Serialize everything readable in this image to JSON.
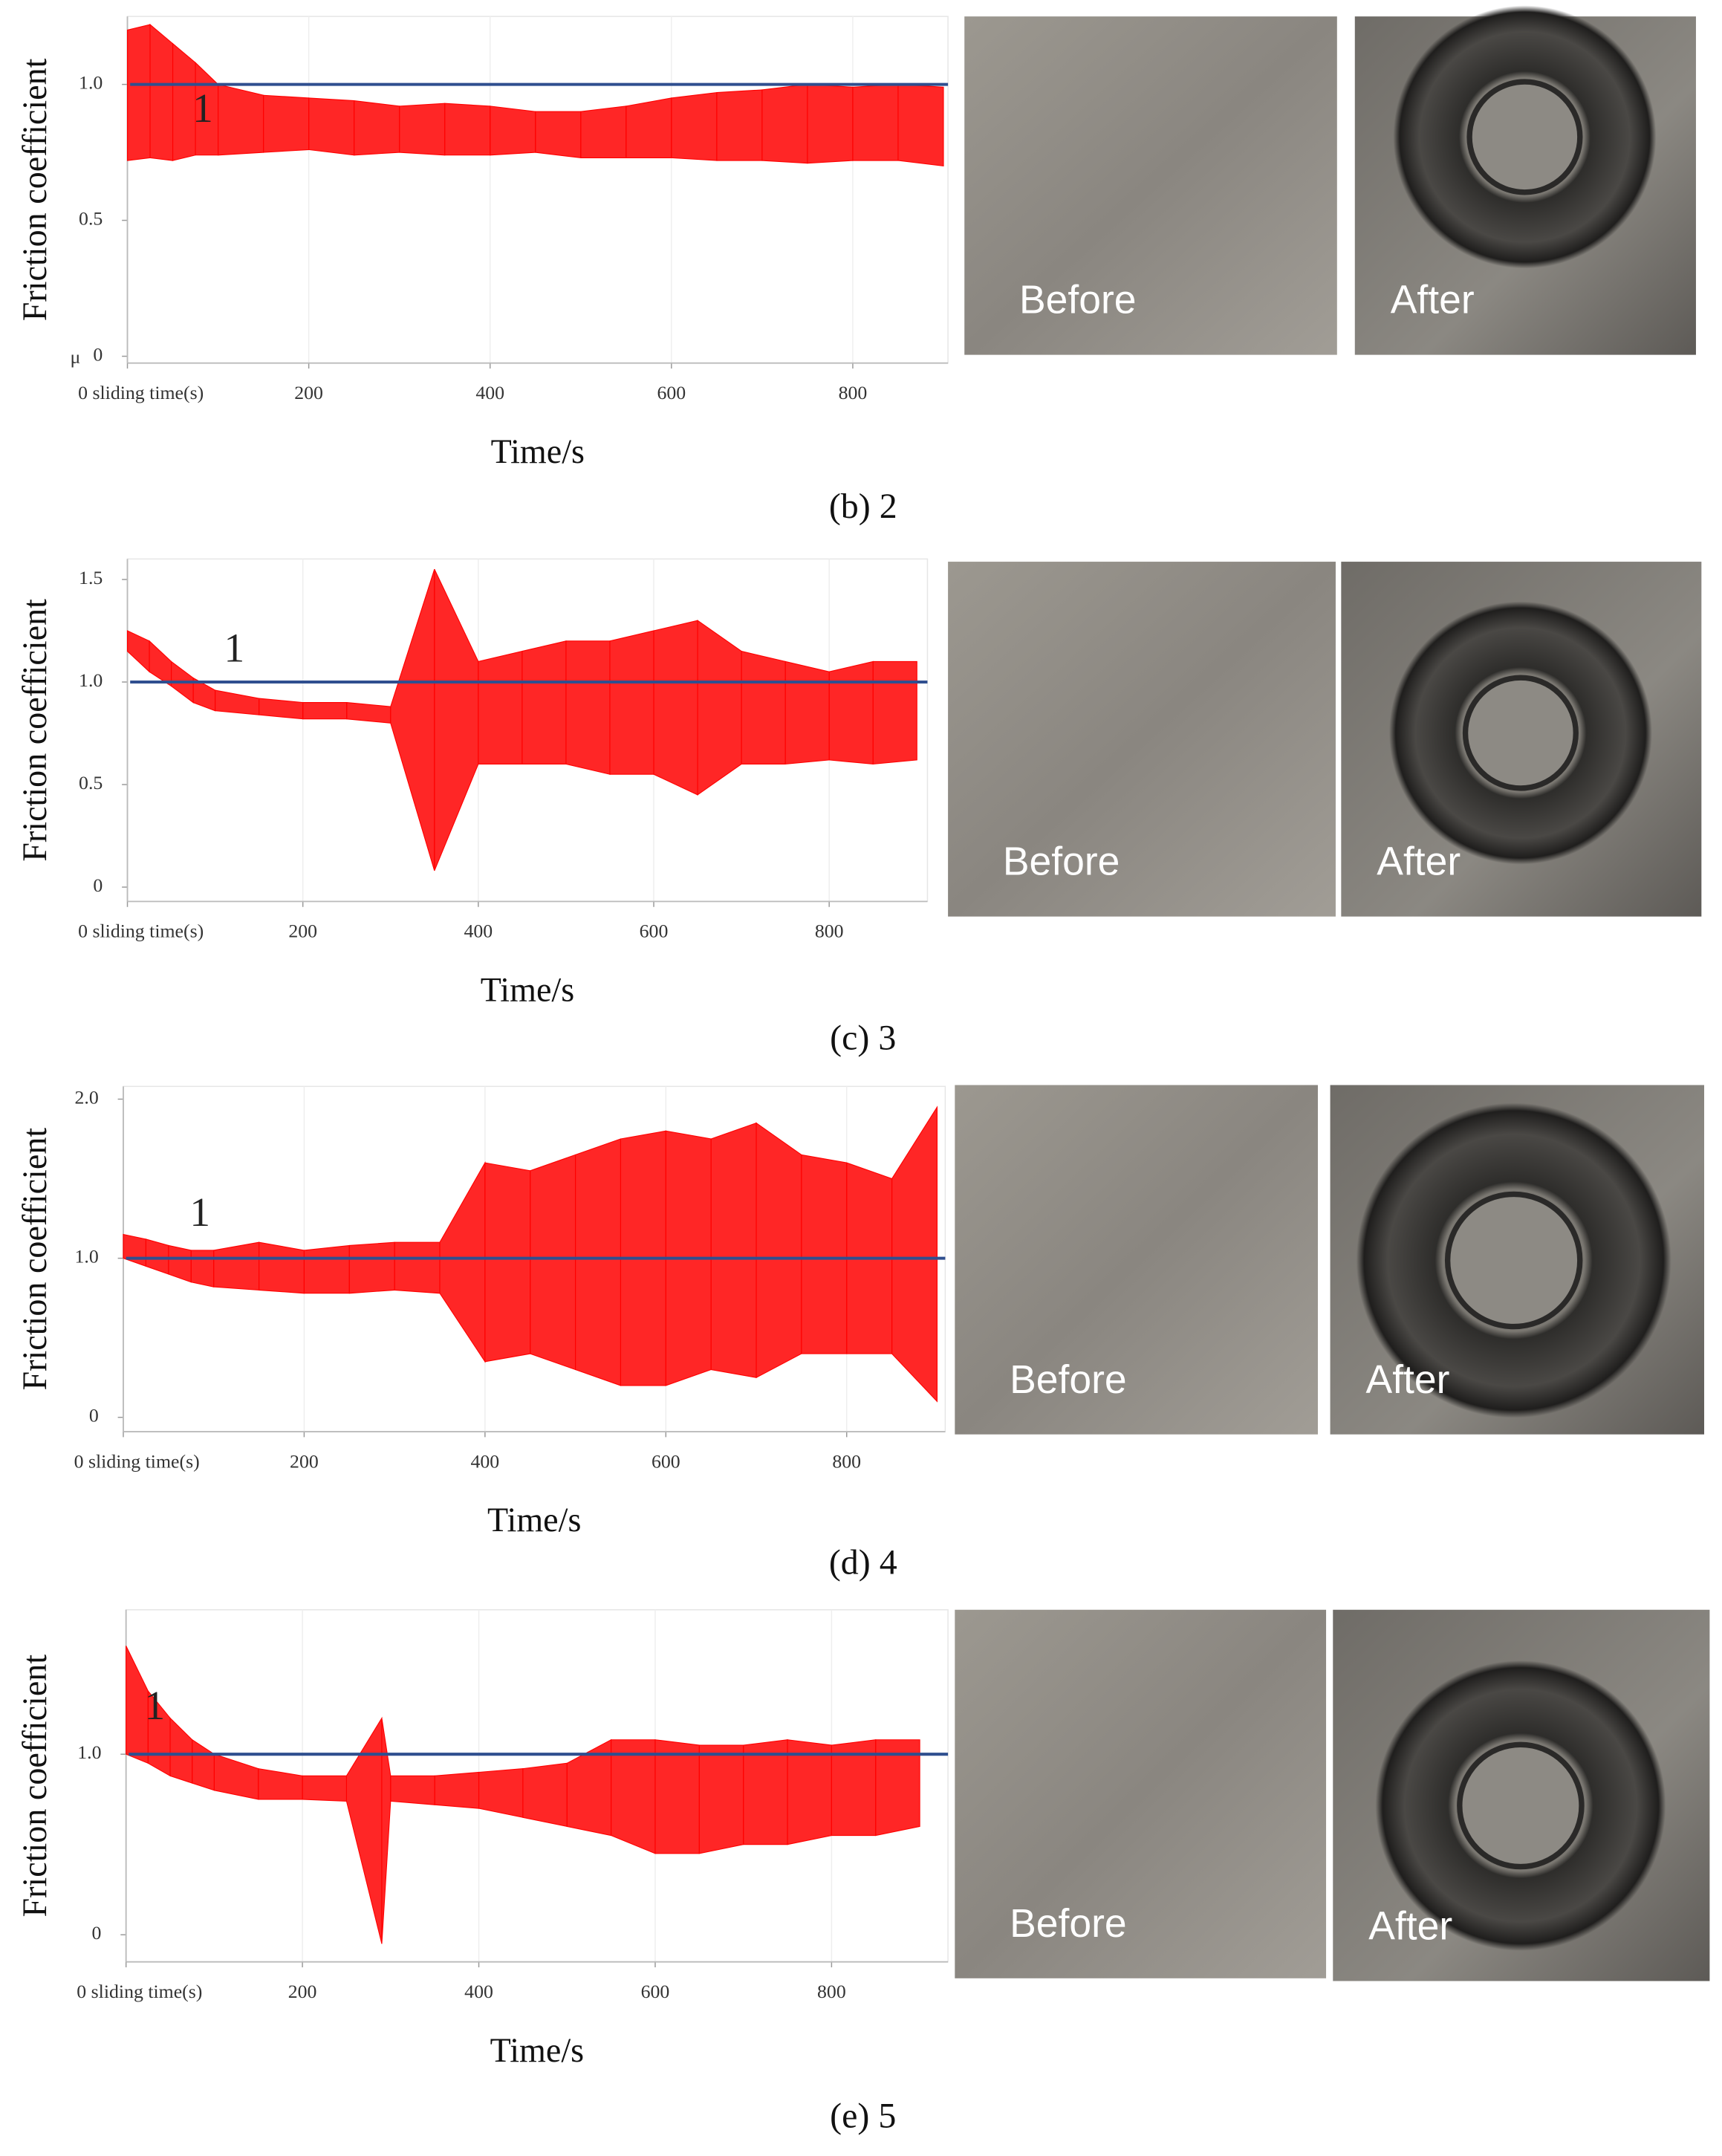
{
  "chart_data": [
    {
      "type": "band",
      "y_title": "Friction coefficient",
      "x_title": "Time/s",
      "caption": "(b) 2",
      "y_unit": "μ",
      "annotation": "1",
      "photo_labels": [
        "Before",
        "After"
      ],
      "reference": 1.0,
      "reference_color": "#2f4f8f",
      "color": "#ff0000",
      "grid": true,
      "xlim": [
        0,
        905
      ],
      "ylim": [
        -0.025,
        1.25
      ],
      "xticks": [
        {
          "value": 0,
          "label": "0 sliding time(s)"
        },
        200,
        400,
        600,
        800
      ],
      "yticks": [
        0,
        0.5,
        {
          "value": 1.0,
          "label": "1.0"
        }
      ],
      "x": [
        0,
        25,
        50,
        75,
        100,
        150,
        200,
        250,
        300,
        350,
        400,
        450,
        500,
        550,
        600,
        650,
        700,
        750,
        800,
        850,
        900
      ],
      "upper": [
        1.2,
        1.22,
        1.15,
        1.08,
        1.0,
        0.96,
        0.95,
        0.94,
        0.92,
        0.93,
        0.92,
        0.9,
        0.9,
        0.92,
        0.95,
        0.97,
        0.98,
        1.0,
        0.99,
        1.0,
        0.99
      ],
      "lower": [
        0.72,
        0.73,
        0.72,
        0.74,
        0.74,
        0.75,
        0.76,
        0.74,
        0.75,
        0.74,
        0.74,
        0.75,
        0.73,
        0.73,
        0.73,
        0.72,
        0.72,
        0.71,
        0.72,
        0.72,
        0.7
      ]
    },
    {
      "type": "band",
      "y_title": "Friction coefficient",
      "x_title": "Time/s",
      "caption": "(c) 3",
      "annotation": "1",
      "photo_labels": [
        "Before",
        "After"
      ],
      "reference": 1.0,
      "reference_color": "#2f4f8f",
      "color": "#ff0000",
      "grid": true,
      "xlim": [
        0,
        912
      ],
      "ylim": [
        -0.07,
        1.6
      ],
      "xticks": [
        {
          "value": 0,
          "label": "0 sliding time(s)"
        },
        200,
        400,
        600,
        800
      ],
      "yticks": [
        0,
        0.5,
        {
          "value": 1.0,
          "label": "1.0"
        },
        1.5
      ],
      "x": [
        0,
        25,
        50,
        75,
        100,
        150,
        200,
        250,
        300,
        350,
        400,
        450,
        500,
        550,
        600,
        650,
        700,
        750,
        800,
        850,
        900
      ],
      "upper": [
        1.25,
        1.2,
        1.1,
        1.02,
        0.96,
        0.92,
        0.9,
        0.9,
        0.88,
        1.55,
        1.1,
        1.15,
        1.2,
        1.2,
        1.25,
        1.3,
        1.15,
        1.1,
        1.05,
        1.1,
        1.1
      ],
      "lower": [
        1.15,
        1.05,
        0.98,
        0.9,
        0.86,
        0.84,
        0.82,
        0.82,
        0.8,
        0.08,
        0.6,
        0.6,
        0.6,
        0.55,
        0.55,
        0.45,
        0.6,
        0.6,
        0.62,
        0.6,
        0.62
      ]
    },
    {
      "type": "band",
      "y_title": "Friction coefficient",
      "x_title": "Time/s",
      "caption": "(d) 4",
      "annotation": "1",
      "photo_labels": [
        "Before",
        "After"
      ],
      "reference": 1.0,
      "reference_color": "#2f4f8f",
      "color": "#ff0000",
      "grid": true,
      "xlim": [
        0,
        909
      ],
      "ylim": [
        -0.09,
        2.08
      ],
      "xticks": [
        {
          "value": 0,
          "label": "0 sliding time(s)"
        },
        200,
        400,
        600,
        800
      ],
      "yticks": [
        0,
        {
          "value": 1.0,
          "label": "1.0"
        },
        {
          "value": 2.0,
          "label": "2.0"
        }
      ],
      "x": [
        0,
        25,
        50,
        75,
        100,
        150,
        200,
        250,
        300,
        350,
        400,
        450,
        500,
        550,
        600,
        650,
        700,
        750,
        800,
        850,
        900
      ],
      "upper": [
        1.15,
        1.12,
        1.08,
        1.05,
        1.05,
        1.1,
        1.05,
        1.08,
        1.1,
        1.1,
        1.6,
        1.55,
        1.65,
        1.75,
        1.8,
        1.75,
        1.85,
        1.65,
        1.6,
        1.5,
        1.95
      ],
      "lower": [
        1.0,
        0.95,
        0.9,
        0.85,
        0.82,
        0.8,
        0.78,
        0.78,
        0.8,
        0.78,
        0.35,
        0.4,
        0.3,
        0.2,
        0.2,
        0.3,
        0.25,
        0.4,
        0.4,
        0.4,
        0.1
      ]
    },
    {
      "type": "band",
      "y_title": "Friction coefficient",
      "x_title": "Time/s",
      "caption": "(e) 5",
      "annotation": "1",
      "photo_labels": [
        "Before",
        "After"
      ],
      "reference": 1.0,
      "reference_color": "#2f4f8f",
      "color": "#ff0000",
      "grid": true,
      "xlim": [
        0,
        932
      ],
      "ylim": [
        -0.15,
        1.8
      ],
      "xticks": [
        {
          "value": 0,
          "label": "0 sliding time(s)"
        },
        200,
        400,
        600,
        800
      ],
      "yticks": [
        0,
        {
          "value": 1.0,
          "label": "1.0"
        }
      ],
      "x": [
        0,
        25,
        50,
        75,
        100,
        150,
        200,
        250,
        290,
        300,
        350,
        400,
        450,
        500,
        550,
        600,
        650,
        700,
        750,
        800,
        850,
        900
      ],
      "upper": [
        1.6,
        1.35,
        1.2,
        1.08,
        1.0,
        0.92,
        0.88,
        0.88,
        1.2,
        0.88,
        0.88,
        0.9,
        0.92,
        0.95,
        1.08,
        1.08,
        1.05,
        1.05,
        1.08,
        1.05,
        1.08,
        1.08
      ],
      "lower": [
        1.0,
        0.95,
        0.88,
        0.84,
        0.8,
        0.75,
        0.75,
        0.74,
        -0.05,
        0.74,
        0.72,
        0.7,
        0.65,
        0.6,
        0.55,
        0.45,
        0.45,
        0.5,
        0.5,
        0.55,
        0.55,
        0.6
      ]
    }
  ]
}
